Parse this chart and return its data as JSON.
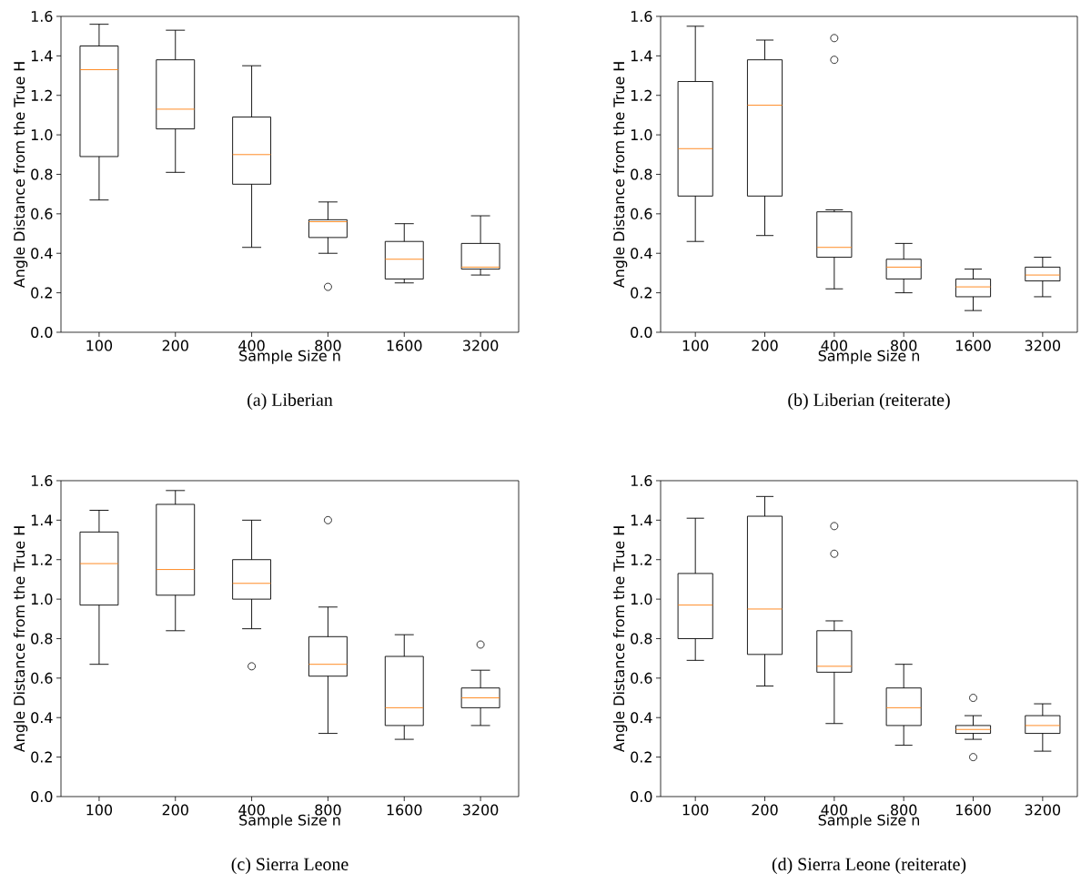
{
  "chart_data": [
    {
      "type": "box",
      "title": "(a) Liberian",
      "xlabel": "Sample Size n",
      "ylabel": "Angle Distance from the True H",
      "categories": [
        "100",
        "200",
        "400",
        "800",
        "1600",
        "3200"
      ],
      "ylim": [
        0,
        1.6
      ],
      "yticks": [
        {
          "value": 0,
          "label": "0.0"
        },
        {
          "value": 0.2,
          "label": "0.2"
        },
        {
          "value": 0.4,
          "label": "0.4"
        },
        {
          "value": 0.6,
          "label": "0.6"
        },
        {
          "value": 0.8,
          "label": "0.8"
        },
        {
          "value": 1.0,
          "label": "1.0"
        },
        {
          "value": 1.2,
          "label": "1.2"
        },
        {
          "value": 1.4,
          "label": "1.4"
        },
        {
          "value": 1.6,
          "label": "1.6"
        }
      ],
      "boxes": [
        {
          "low": 0.67,
          "q1": 0.89,
          "median": 1.33,
          "q3": 1.45,
          "high": 1.56
        },
        {
          "low": 0.81,
          "q1": 1.03,
          "median": 1.13,
          "q3": 1.38,
          "high": 1.53
        },
        {
          "low": 0.43,
          "q1": 0.75,
          "median": 0.9,
          "q3": 1.09,
          "high": 1.35
        },
        {
          "low": 0.4,
          "q1": 0.48,
          "median": 0.56,
          "q3": 0.57,
          "high": 0.66,
          "outliers": [
            0.23
          ]
        },
        {
          "low": 0.25,
          "q1": 0.27,
          "median": 0.37,
          "q3": 0.46,
          "high": 0.55
        },
        {
          "low": 0.29,
          "q1": 0.32,
          "median": 0.33,
          "q3": 0.45,
          "high": 0.59
        }
      ]
    },
    {
      "type": "box",
      "title": "(b) Liberian (reiterate)",
      "xlabel": "Sample Size n",
      "ylabel": "Angle Distance from the True H",
      "categories": [
        "100",
        "200",
        "400",
        "800",
        "1600",
        "3200"
      ],
      "ylim": [
        0,
        1.6
      ],
      "yticks": [
        {
          "value": 0,
          "label": "0.0"
        },
        {
          "value": 0.2,
          "label": "0.2"
        },
        {
          "value": 0.4,
          "label": "0.4"
        },
        {
          "value": 0.6,
          "label": "0.6"
        },
        {
          "value": 0.8,
          "label": "0.8"
        },
        {
          "value": 1.0,
          "label": "1.0"
        },
        {
          "value": 1.2,
          "label": "1.2"
        },
        {
          "value": 1.4,
          "label": "1.4"
        },
        {
          "value": 1.6,
          "label": "1.6"
        }
      ],
      "boxes": [
        {
          "low": 0.46,
          "q1": 0.69,
          "median": 0.93,
          "q3": 1.27,
          "high": 1.55
        },
        {
          "low": 0.49,
          "q1": 0.69,
          "median": 1.15,
          "q3": 1.38,
          "high": 1.48
        },
        {
          "low": 0.22,
          "q1": 0.38,
          "median": 0.43,
          "q3": 0.61,
          "high": 0.62,
          "outliers": [
            1.38,
            1.49
          ]
        },
        {
          "low": 0.2,
          "q1": 0.27,
          "median": 0.33,
          "q3": 0.37,
          "high": 0.45
        },
        {
          "low": 0.11,
          "q1": 0.18,
          "median": 0.23,
          "q3": 0.27,
          "high": 0.32
        },
        {
          "low": 0.18,
          "q1": 0.26,
          "median": 0.29,
          "q3": 0.33,
          "high": 0.38
        }
      ]
    },
    {
      "type": "box",
      "title": "(c) Sierra Leone",
      "xlabel": "Sample Size n",
      "ylabel": "Angle Distance from the True H",
      "categories": [
        "100",
        "200",
        "400",
        "800",
        "1600",
        "3200"
      ],
      "ylim": [
        0,
        1.6
      ],
      "yticks": [
        {
          "value": 0,
          "label": "0.0"
        },
        {
          "value": 0.2,
          "label": "0.2"
        },
        {
          "value": 0.4,
          "label": "0.4"
        },
        {
          "value": 0.6,
          "label": "0.6"
        },
        {
          "value": 0.8,
          "label": "0.8"
        },
        {
          "value": 1.0,
          "label": "1.0"
        },
        {
          "value": 1.2,
          "label": "1.2"
        },
        {
          "value": 1.4,
          "label": "1.4"
        },
        {
          "value": 1.6,
          "label": "1.6"
        }
      ],
      "boxes": [
        {
          "low": 0.67,
          "q1": 0.97,
          "median": 1.18,
          "q3": 1.34,
          "high": 1.45
        },
        {
          "low": 0.84,
          "q1": 1.02,
          "median": 1.15,
          "q3": 1.48,
          "high": 1.55
        },
        {
          "low": 0.85,
          "q1": 1.0,
          "median": 1.08,
          "q3": 1.2,
          "high": 1.4,
          "outliers": [
            0.66
          ]
        },
        {
          "low": 0.32,
          "q1": 0.61,
          "median": 0.67,
          "q3": 0.81,
          "high": 0.96,
          "outliers": [
            1.4
          ]
        },
        {
          "low": 0.29,
          "q1": 0.36,
          "median": 0.45,
          "q3": 0.71,
          "high": 0.82
        },
        {
          "low": 0.36,
          "q1": 0.45,
          "median": 0.5,
          "q3": 0.55,
          "high": 0.64,
          "outliers": [
            0.77
          ]
        }
      ]
    },
    {
      "type": "box",
      "title": "(d) Sierra Leone (reiterate)",
      "xlabel": "Sample Size n",
      "ylabel": "Angle Distance from the True H",
      "categories": [
        "100",
        "200",
        "400",
        "800",
        "1600",
        "3200"
      ],
      "ylim": [
        0,
        1.6
      ],
      "yticks": [
        {
          "value": 0,
          "label": "0.0"
        },
        {
          "value": 0.2,
          "label": "0.2"
        },
        {
          "value": 0.4,
          "label": "0.4"
        },
        {
          "value": 0.6,
          "label": "0.6"
        },
        {
          "value": 0.8,
          "label": "0.8"
        },
        {
          "value": 1.0,
          "label": "1.0"
        },
        {
          "value": 1.2,
          "label": "1.2"
        },
        {
          "value": 1.4,
          "label": "1.4"
        },
        {
          "value": 1.6,
          "label": "1.6"
        }
      ],
      "boxes": [
        {
          "low": 0.69,
          "q1": 0.8,
          "median": 0.97,
          "q3": 1.13,
          "high": 1.41
        },
        {
          "low": 0.56,
          "q1": 0.72,
          "median": 0.95,
          "q3": 1.42,
          "high": 1.52
        },
        {
          "low": 0.37,
          "q1": 0.63,
          "median": 0.66,
          "q3": 0.84,
          "high": 0.89,
          "outliers": [
            1.23,
            1.37
          ]
        },
        {
          "low": 0.26,
          "q1": 0.36,
          "median": 0.45,
          "q3": 0.55,
          "high": 0.67
        },
        {
          "low": 0.29,
          "q1": 0.32,
          "median": 0.34,
          "q3": 0.36,
          "high": 0.41,
          "outliers": [
            0.2,
            0.5
          ]
        },
        {
          "low": 0.23,
          "q1": 0.32,
          "median": 0.36,
          "q3": 0.41,
          "high": 0.47
        }
      ]
    }
  ]
}
